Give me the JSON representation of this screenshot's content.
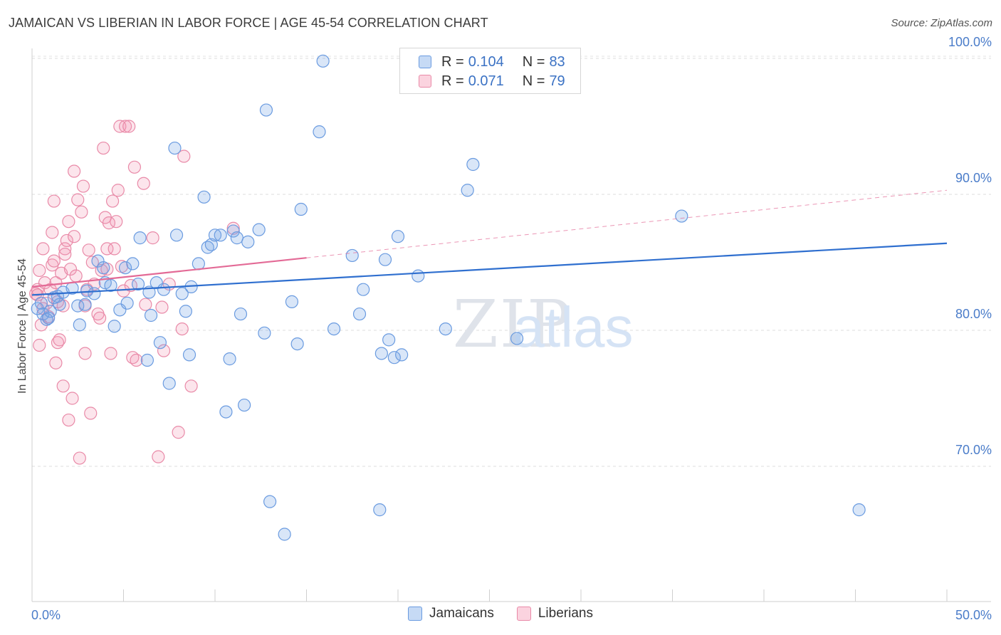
{
  "header": {
    "title": "JAMAICAN VS LIBERIAN IN LABOR FORCE | AGE 45-54 CORRELATION CHART",
    "source": "Source: ZipAtlas.com"
  },
  "legend": {
    "r_label": "R =",
    "n_label": "N =",
    "rows": [
      {
        "r": "0.104",
        "n": "83",
        "color": "#a8c8f0",
        "border": "#6a9be0"
      },
      {
        "r": "0.071",
        "n": "79",
        "color": "#f8c3d3",
        "border": "#e98aa8"
      }
    ]
  },
  "bottom_legend": [
    {
      "label": "Jamaicans",
      "color": "#c6daf5",
      "border": "#6a9be0"
    },
    {
      "label": "Liberians",
      "color": "#fbd3df",
      "border": "#e98aa8"
    }
  ],
  "colors": {
    "jamaican_fill": "rgba(120,165,230,0.28)",
    "jamaican_stroke": "#6a9be0",
    "jamaican_line": "#2f6fcf",
    "liberian_fill": "rgba(245,150,180,0.25)",
    "liberian_stroke": "#e98aa8",
    "liberian_line": "#e36a96"
  },
  "chart_data": {
    "type": "scatter",
    "title": "JAMAICAN VS LIBERIAN IN LABOR FORCE | AGE 45-54 CORRELATION CHART",
    "xlabel": "",
    "ylabel": "In Labor Force | Age 45-54",
    "xlim": [
      0,
      50
    ],
    "ylim": [
      61.0,
      102.0
    ],
    "x_tick_labels": [
      "0.0%",
      "50.0%"
    ],
    "y_ticks": [
      70,
      80,
      90,
      100
    ],
    "y_tick_labels": [
      "70.0%",
      "80.0%",
      "90.0%",
      "100.0%"
    ],
    "grid": true,
    "legend_position": "top-center",
    "watermark": "ZIPatlas",
    "series": [
      {
        "name": "Jamaicans",
        "r": 0.104,
        "n": 83,
        "trend": {
          "x": [
            0,
            50
          ],
          "y": [
            82.6,
            86.4
          ],
          "dashed_from": null
        },
        "points": [
          [
            0.3,
            81.6
          ],
          [
            0.5,
            82.0
          ],
          [
            0.6,
            81.2
          ],
          [
            0.8,
            80.8
          ],
          [
            1.0,
            81.4
          ],
          [
            1.2,
            82.4
          ],
          [
            1.4,
            82.5
          ],
          [
            1.7,
            82.8
          ],
          [
            2.2,
            83.1
          ],
          [
            2.5,
            81.8
          ],
          [
            2.6,
            80.4
          ],
          [
            2.9,
            81.9
          ],
          [
            3.0,
            82.9
          ],
          [
            3.4,
            82.7
          ],
          [
            3.6,
            85.1
          ],
          [
            3.9,
            84.6
          ],
          [
            4.0,
            83.5
          ],
          [
            4.3,
            83.3
          ],
          [
            4.5,
            80.3
          ],
          [
            4.8,
            81.5
          ],
          [
            5.1,
            84.6
          ],
          [
            5.2,
            82.0
          ],
          [
            5.5,
            84.9
          ],
          [
            5.8,
            83.4
          ],
          [
            5.9,
            86.8
          ],
          [
            6.3,
            77.8
          ],
          [
            6.4,
            82.8
          ],
          [
            6.5,
            81.1
          ],
          [
            6.8,
            83.5
          ],
          [
            7.0,
            79.1
          ],
          [
            7.2,
            83.0
          ],
          [
            7.5,
            76.1
          ],
          [
            7.8,
            93.4
          ],
          [
            7.9,
            87.0
          ],
          [
            8.2,
            82.7
          ],
          [
            8.4,
            81.4
          ],
          [
            8.6,
            78.2
          ],
          [
            8.7,
            83.2
          ],
          [
            9.1,
            84.9
          ],
          [
            9.4,
            89.8
          ],
          [
            9.6,
            86.1
          ],
          [
            9.8,
            86.3
          ],
          [
            10.0,
            87.0
          ],
          [
            10.3,
            87.0
          ],
          [
            10.6,
            74.0
          ],
          [
            10.8,
            77.9
          ],
          [
            11.0,
            87.3
          ],
          [
            11.2,
            86.8
          ],
          [
            11.4,
            81.2
          ],
          [
            11.6,
            74.5
          ],
          [
            11.8,
            86.5
          ],
          [
            12.4,
            87.4
          ],
          [
            12.7,
            79.8
          ],
          [
            12.8,
            96.2
          ],
          [
            13.0,
            67.4
          ],
          [
            13.8,
            65.0
          ],
          [
            14.2,
            82.1
          ],
          [
            14.5,
            79.0
          ],
          [
            14.7,
            88.9
          ],
          [
            15.7,
            94.6
          ],
          [
            15.9,
            99.8
          ],
          [
            16.5,
            80.1
          ],
          [
            17.5,
            85.5
          ],
          [
            17.9,
            81.2
          ],
          [
            18.1,
            83.0
          ],
          [
            19.0,
            66.8
          ],
          [
            19.1,
            78.3
          ],
          [
            19.3,
            85.2
          ],
          [
            19.5,
            79.3
          ],
          [
            19.8,
            78.0
          ],
          [
            20.0,
            86.9
          ],
          [
            20.2,
            78.2
          ],
          [
            21.1,
            84.0
          ],
          [
            22.6,
            80.1
          ],
          [
            23.8,
            90.3
          ],
          [
            24.1,
            92.2
          ],
          [
            26.5,
            79.4
          ],
          [
            28.5,
            100.0
          ],
          [
            28.7,
            99.8
          ],
          [
            35.5,
            88.4
          ],
          [
            45.2,
            66.8
          ],
          [
            0.9,
            80.9
          ],
          [
            1.5,
            81.9
          ]
        ]
      },
      {
        "name": "Liberians",
        "r": 0.071,
        "n": 79,
        "trend": {
          "x": [
            0,
            50
          ],
          "y": [
            83.2,
            90.3
          ],
          "dashed_from": 15
        },
        "points": [
          [
            0.2,
            82.7
          ],
          [
            0.3,
            83.0
          ],
          [
            0.4,
            78.9
          ],
          [
            0.4,
            84.4
          ],
          [
            0.5,
            80.4
          ],
          [
            0.6,
            86.0
          ],
          [
            0.7,
            83.5
          ],
          [
            0.8,
            82.0
          ],
          [
            0.9,
            81.0
          ],
          [
            1.0,
            83.0
          ],
          [
            1.1,
            87.2
          ],
          [
            1.1,
            84.8
          ],
          [
            1.2,
            85.1
          ],
          [
            1.2,
            89.5
          ],
          [
            1.3,
            77.6
          ],
          [
            1.4,
            82.1
          ],
          [
            1.4,
            79.1
          ],
          [
            1.5,
            79.3
          ],
          [
            1.6,
            84.2
          ],
          [
            1.7,
            81.8
          ],
          [
            1.7,
            75.9
          ],
          [
            1.8,
            86.0
          ],
          [
            1.8,
            85.6
          ],
          [
            1.9,
            86.6
          ],
          [
            2.0,
            73.4
          ],
          [
            2.0,
            88.0
          ],
          [
            2.1,
            84.5
          ],
          [
            2.2,
            75.0
          ],
          [
            2.3,
            91.7
          ],
          [
            2.3,
            86.9
          ],
          [
            2.4,
            84.0
          ],
          [
            2.5,
            89.6
          ],
          [
            2.6,
            70.6
          ],
          [
            2.7,
            88.7
          ],
          [
            2.8,
            90.6
          ],
          [
            2.9,
            78.3
          ],
          [
            3.0,
            83.0
          ],
          [
            3.1,
            85.9
          ],
          [
            3.2,
            73.9
          ],
          [
            3.3,
            85.0
          ],
          [
            3.4,
            83.4
          ],
          [
            3.6,
            81.2
          ],
          [
            3.8,
            84.4
          ],
          [
            3.9,
            93.4
          ],
          [
            4.0,
            88.3
          ],
          [
            4.1,
            86.0
          ],
          [
            4.1,
            84.5
          ],
          [
            4.2,
            87.9
          ],
          [
            4.3,
            78.3
          ],
          [
            4.4,
            89.5
          ],
          [
            4.5,
            86.0
          ],
          [
            4.6,
            88.0
          ],
          [
            4.7,
            90.3
          ],
          [
            4.8,
            95.0
          ],
          [
            5.0,
            82.9
          ],
          [
            5.1,
            95.0
          ],
          [
            5.3,
            95.0
          ],
          [
            5.4,
            83.3
          ],
          [
            5.5,
            78.0
          ],
          [
            5.6,
            92.0
          ],
          [
            5.7,
            77.8
          ],
          [
            6.1,
            90.8
          ],
          [
            6.6,
            86.8
          ],
          [
            6.9,
            70.7
          ],
          [
            7.1,
            81.7
          ],
          [
            7.2,
            78.5
          ],
          [
            7.5,
            83.4
          ],
          [
            8.0,
            72.5
          ],
          [
            8.2,
            80.1
          ],
          [
            8.3,
            92.8
          ],
          [
            8.7,
            75.9
          ],
          [
            11.0,
            87.5
          ],
          [
            0.3,
            82.6
          ],
          [
            0.6,
            81.6
          ],
          [
            1.3,
            83.5
          ],
          [
            2.9,
            81.8
          ],
          [
            3.7,
            80.9
          ],
          [
            4.9,
            84.7
          ],
          [
            6.2,
            81.9
          ]
        ]
      }
    ]
  }
}
